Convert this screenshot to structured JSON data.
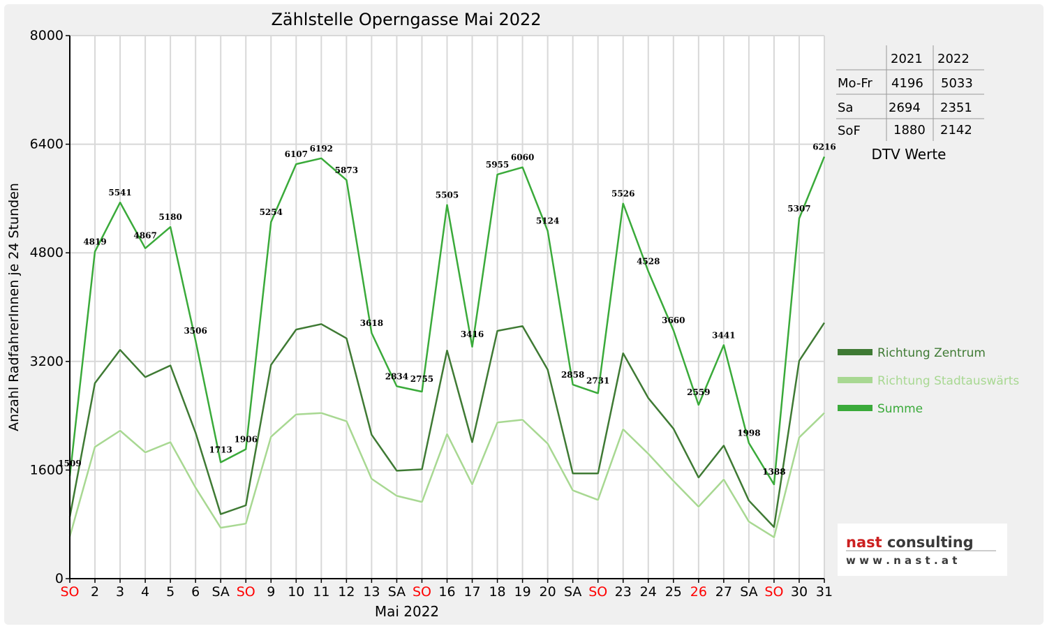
{
  "chart_data": {
    "type": "line",
    "title": "Zählstelle Operngasse Mai 2022",
    "xlabel": "Mai 2022",
    "ylabel": "Anzahl RadfahrerInnen je 24 Stunden",
    "ylim": [
      0,
      8000
    ],
    "yticks": [
      "0",
      "1600",
      "3200",
      "4800",
      "6400",
      "8000"
    ],
    "grid": true,
    "legend_position": "right",
    "categories": [
      "SO",
      "2",
      "3",
      "4",
      "5",
      "6",
      "SA",
      "SO",
      "9",
      "10",
      "11",
      "12",
      "13",
      "SA",
      "SO",
      "16",
      "17",
      "18",
      "19",
      "20",
      "SA",
      "SO",
      "23",
      "24",
      "25",
      "26",
      "27",
      "SA",
      "SO",
      "30",
      "31"
    ],
    "red_categories": [
      0,
      7,
      14,
      21,
      25,
      28
    ],
    "series": [
      {
        "name": "Richtung Zentrum",
        "color": "#3f7a34",
        "values": [
          910,
          2880,
          3370,
          2970,
          3140,
          2150,
          950,
          1080,
          3150,
          3670,
          3750,
          3540,
          2120,
          1590,
          1610,
          3360,
          2010,
          3650,
          3720,
          3080,
          1550,
          1550,
          3320,
          2660,
          2210,
          1490,
          1960,
          1150,
          760,
          3210,
          3770
        ]
      },
      {
        "name": "Richtung Stadtauswärts",
        "color": "#a8d892",
        "values": [
          620,
          1940,
          2180,
          1860,
          2010,
          1340,
          750,
          810,
          2090,
          2420,
          2440,
          2320,
          1470,
          1220,
          1130,
          2130,
          1390,
          2300,
          2340,
          1990,
          1300,
          1160,
          2200,
          1840,
          1440,
          1060,
          1460,
          840,
          610,
          2080,
          2440
        ]
      },
      {
        "name": "Summe",
        "color": "#3aaa3a",
        "values": [
          1509,
          4819,
          5541,
          4867,
          5180,
          3506,
          1713,
          1906,
          5254,
          6107,
          6192,
          5873,
          3618,
          2834,
          2755,
          5505,
          3416,
          5955,
          6060,
          5124,
          2858,
          2731,
          5526,
          4528,
          3660,
          2559,
          3441,
          1998,
          1388,
          5307,
          6216
        ]
      }
    ],
    "data_labels": [
      "1509",
      "4819",
      "5541",
      "4867",
      "5180",
      "3506",
      "1713",
      "1906",
      "5254",
      "6107",
      "6192",
      "5873",
      "3618",
      "2834",
      "2755",
      "5505",
      "3416",
      "5955",
      "6060",
      "5124",
      "2858",
      "2731",
      "5526",
      "4528",
      "3660",
      "2559",
      "3441",
      "1998",
      "1388",
      "5307",
      "6216"
    ]
  },
  "dtv_table": {
    "headers": [
      "",
      "2021",
      "2022"
    ],
    "rows": [
      {
        "label": "Mo-Fr",
        "v2021": "4196",
        "v2022": "5033"
      },
      {
        "label": "Sa",
        "v2021": "2694",
        "v2022": "2351"
      },
      {
        "label": "SoF",
        "v2021": "1880",
        "v2022": "2142"
      }
    ],
    "caption": "DTV Werte"
  },
  "logo": {
    "name": "nast consulting",
    "url": "w w w . n a s t . a t",
    "colors": {
      "nast": "#cc2020",
      "consulting": "#3a3a3a"
    }
  },
  "colors": {
    "background": "#f0f0f0",
    "plot_background": "#ffffff",
    "grid": "#d8d8d8",
    "sunday_red": "#ff0000"
  }
}
